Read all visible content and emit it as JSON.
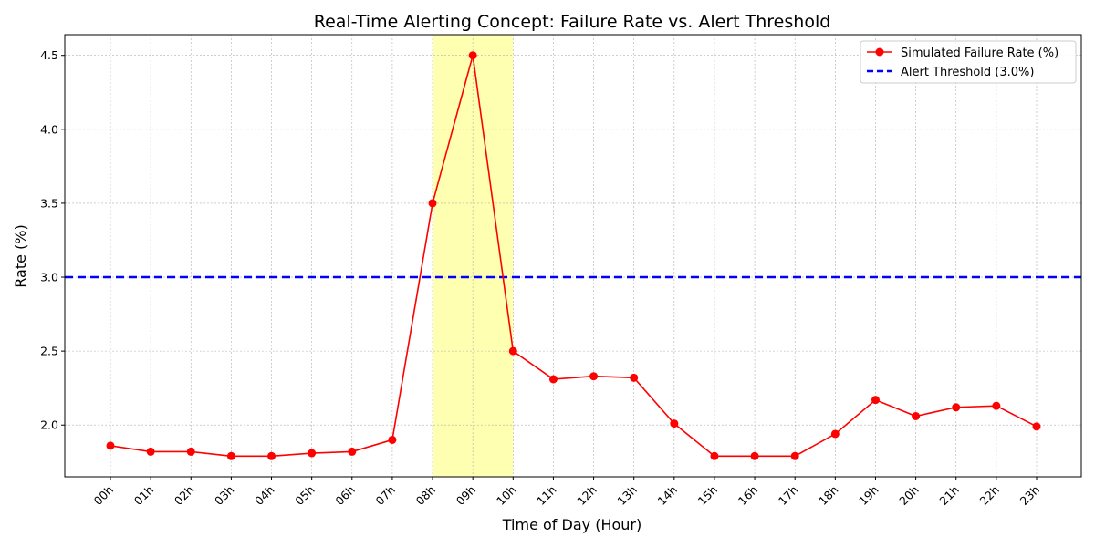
{
  "chart_data": {
    "type": "line",
    "title": "Real-Time Alerting Concept: Failure Rate vs. Alert Threshold",
    "xlabel": "Time of Day (Hour)",
    "ylabel": "Rate (%)",
    "categories": [
      "00h",
      "01h",
      "02h",
      "03h",
      "04h",
      "05h",
      "06h",
      "07h",
      "08h",
      "09h",
      "10h",
      "11h",
      "12h",
      "13h",
      "14h",
      "15h",
      "16h",
      "17h",
      "18h",
      "19h",
      "20h",
      "21h",
      "22h",
      "23h"
    ],
    "series": [
      {
        "name": "Simulated Failure Rate (%)",
        "color": "#ff0000",
        "values": [
          1.86,
          1.82,
          1.82,
          1.79,
          1.79,
          1.81,
          1.82,
          1.9,
          3.5,
          4.5,
          2.5,
          2.31,
          2.33,
          2.32,
          2.01,
          1.79,
          1.79,
          1.79,
          1.94,
          2.17,
          2.06,
          2.12,
          2.13,
          1.99
        ]
      }
    ],
    "threshold": {
      "name": "Alert Threshold (3.0%)",
      "value": 3.0,
      "color": "#0000ff"
    },
    "highlight": {
      "from": "08h",
      "to": "10h",
      "color": "#ffff00"
    },
    "yticks": [
      "2.0",
      "2.5",
      "3.0",
      "3.5",
      "4.0",
      "4.5"
    ],
    "ylim": [
      1.65,
      4.64
    ],
    "grid": true,
    "legend": "top-right"
  }
}
